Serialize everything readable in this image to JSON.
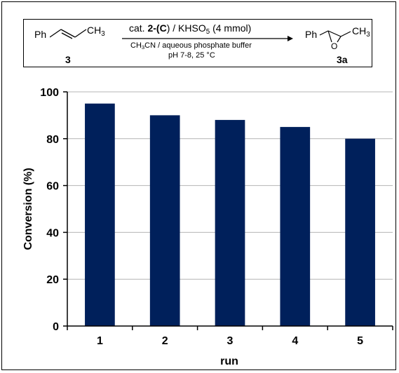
{
  "scheme": {
    "reactant_group": "Ph",
    "reactant_methyl": "CH",
    "reactant_methyl_sub": "3",
    "reactant_label": "3",
    "reagent_prefix": "cat. ",
    "catalyst_label": "2-(",
    "catalyst_letter": "C",
    "reagent_mid": ") / KHSO",
    "reagent_sub": "5",
    "reagent_amount": " (4 mmol)",
    "solvent_pre": "CH",
    "solvent_sub": "3",
    "solvent_post": "CN / aqueous phosphate buffer",
    "conditions": "pH 7-8, 25 °C",
    "product_group": "Ph",
    "product_oxygen": "O",
    "product_methyl": "CH",
    "product_methyl_sub": "3",
    "product_label": "3a"
  },
  "chart_data": {
    "type": "bar",
    "title": "",
    "xlabel": "run",
    "ylabel": "Conversion (%)",
    "categories": [
      "1",
      "2",
      "3",
      "4",
      "5"
    ],
    "values": [
      95,
      90,
      88,
      85,
      80
    ],
    "ylim": [
      0,
      100
    ],
    "yticks": [
      0,
      20,
      40,
      60,
      80,
      100
    ],
    "grid": true,
    "bar_color": "#00205b",
    "grid_color": "#b4b4b4"
  }
}
